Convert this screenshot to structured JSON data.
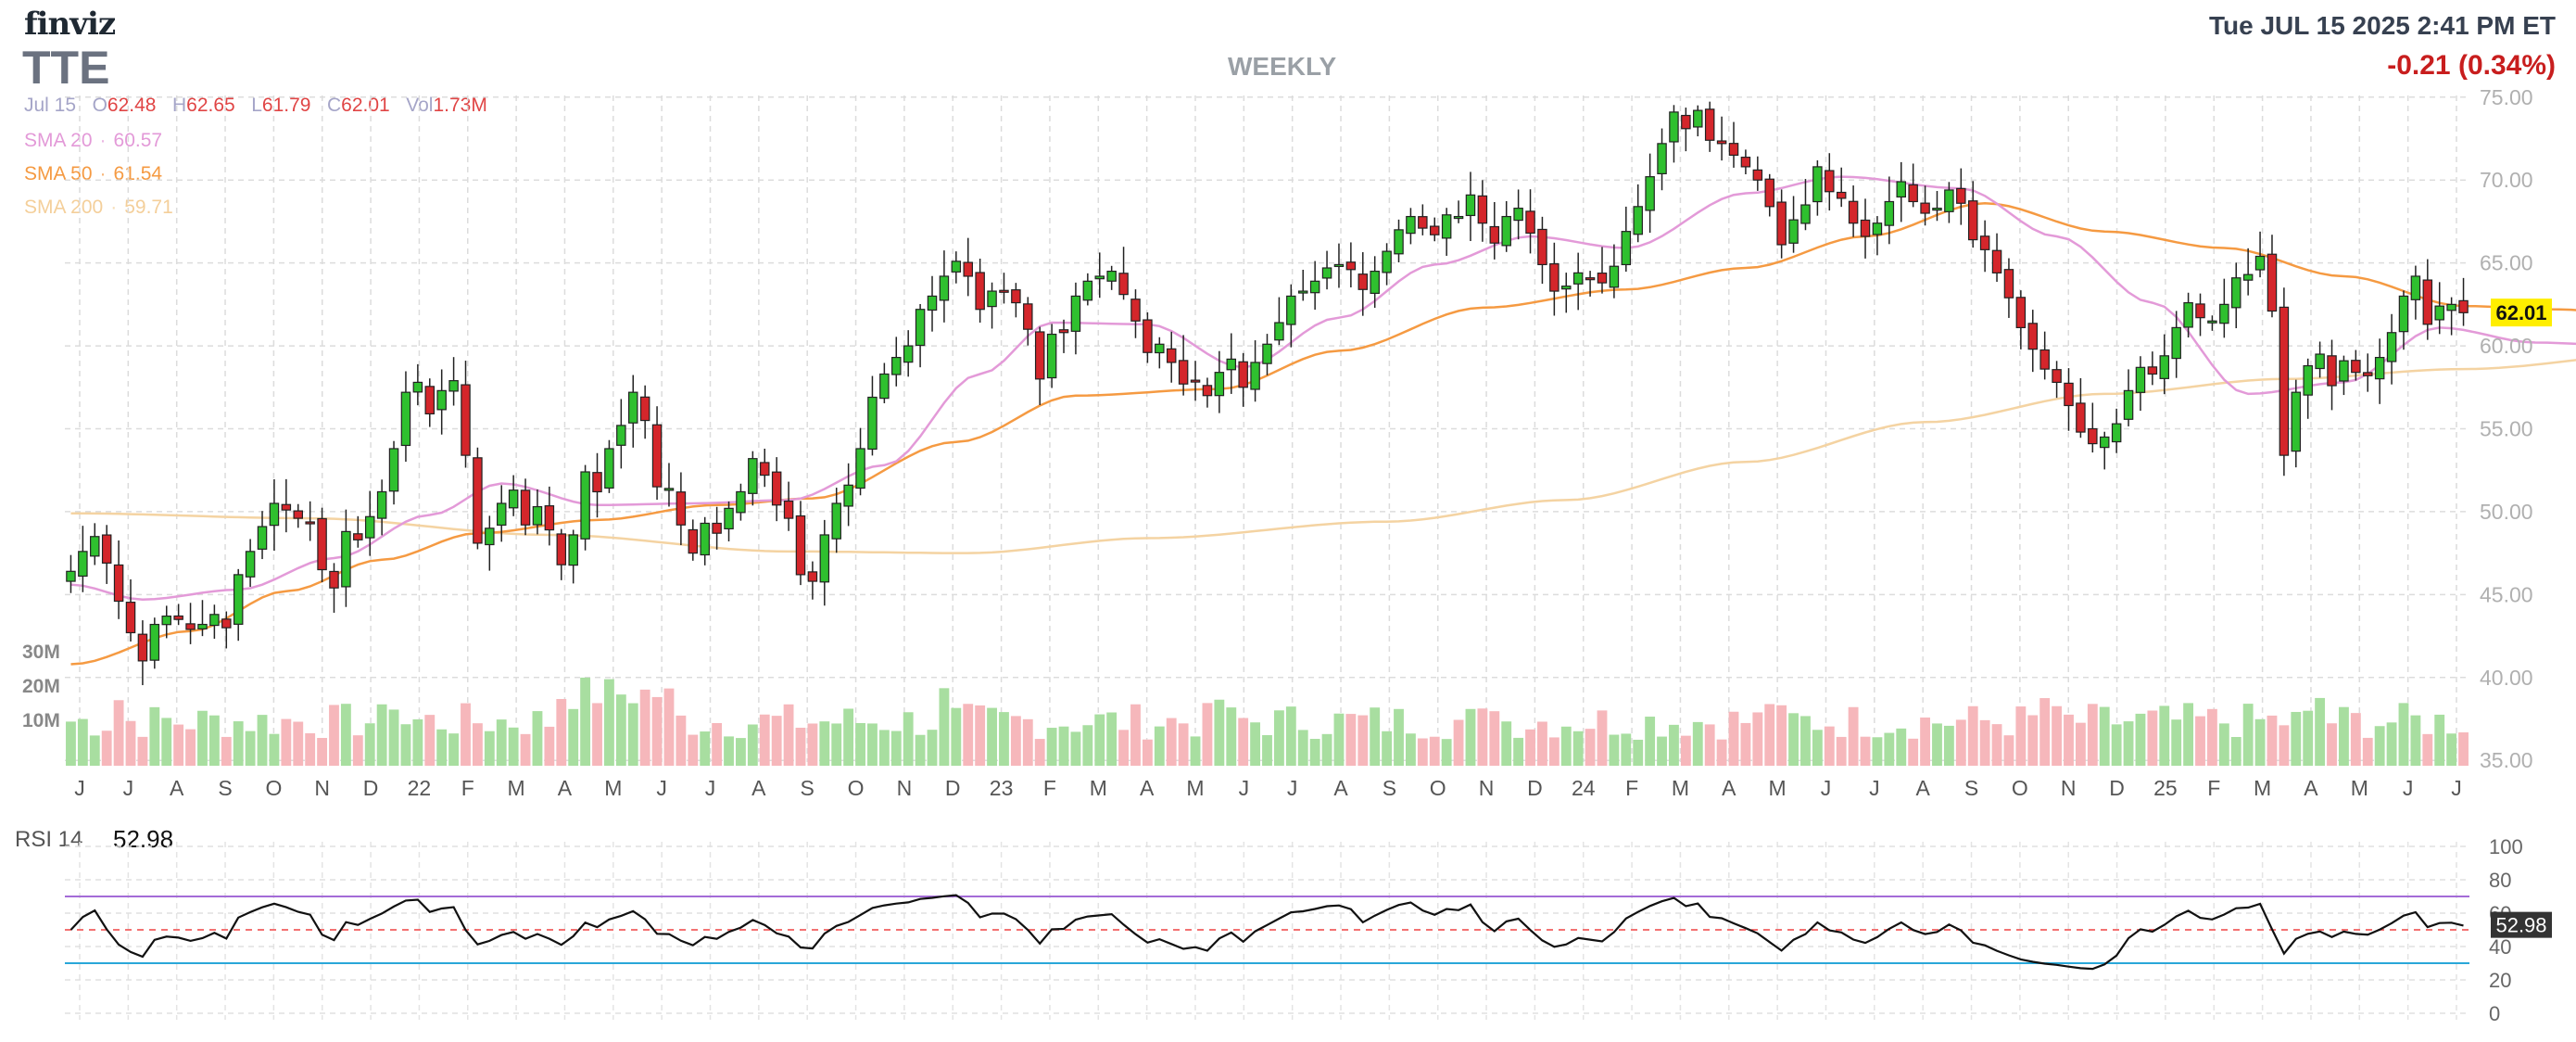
{
  "header": {
    "brand": "finviz",
    "ticker": "TTE",
    "timeframe": "WEEKLY",
    "datetime": "Tue JUL 15 2025 2:41 PM ET",
    "change": "-0.21 (0.34%)"
  },
  "ohlc": {
    "date": "Jul 15",
    "o_label": "O",
    "o": "62.48",
    "h_label": "H",
    "h": "62.65",
    "l_label": "L",
    "l": "61.79",
    "c_label": "C",
    "c": "62.01",
    "vol_label": "Vol",
    "vol": "1.73M"
  },
  "sma": [
    {
      "label": "SMA 20",
      "value": "60.57",
      "color": "#e39ad8"
    },
    {
      "label": "SMA 50",
      "value": "61.54",
      "color": "#f59a42"
    },
    {
      "label": "SMA 200",
      "value": "59.71",
      "color": "#f4d3a2"
    }
  ],
  "rsi": {
    "label": "RSI 14",
    "value": "52.98"
  },
  "colors": {
    "up": "#2fc02f",
    "down": "#d4262b",
    "vol_up": "#a8dea0",
    "vol_down": "#f6b7bb",
    "rsi_line": "#111111",
    "overbought": "#a46cd7",
    "oversold": "#29a7d9",
    "midline": "#ef4444",
    "last_price_bg": "#ffee00"
  },
  "chart_data": [
    {
      "type": "candlestick",
      "title": "TTE WEEKLY",
      "x_tick_labels": [
        "J",
        "J",
        "A",
        "S",
        "O",
        "N",
        "D",
        "22",
        "F",
        "M",
        "A",
        "M",
        "J",
        "J",
        "A",
        "S",
        "O",
        "N",
        "D",
        "23",
        "F",
        "M",
        "A",
        "M",
        "J",
        "J",
        "A",
        "S",
        "O",
        "N",
        "D",
        "24",
        "F",
        "M",
        "A",
        "M",
        "J",
        "J",
        "A",
        "S",
        "O",
        "N",
        "D",
        "25",
        "F",
        "M",
        "A",
        "M",
        "J",
        "J"
      ],
      "y_tick_labels": [
        "75.00",
        "70.00",
        "65.00",
        "60.00",
        "55.00",
        "50.00",
        "45.00",
        "40.00",
        "35.00"
      ],
      "ylim": [
        34.9,
        75.1
      ],
      "last_price": "62.01",
      "volume_tick_labels": [
        "30M",
        "20M",
        "10M"
      ],
      "close": [
        46.4,
        47.6,
        48.5,
        46.9,
        44.6,
        42.7,
        41.0,
        43.2,
        43.7,
        43.5,
        42.9,
        43.2,
        43.8,
        43.0,
        46.2,
        47.6,
        49.1,
        50.5,
        50.1,
        49.6,
        49.3,
        46.5,
        45.4,
        48.8,
        48.3,
        49.7,
        51.2,
        53.8,
        57.2,
        57.8,
        55.9,
        57.3,
        57.9,
        53.4,
        48.1,
        49.0,
        50.5,
        51.3,
        49.2,
        50.3,
        48.9,
        46.8,
        48.6,
        52.4,
        51.2,
        53.8,
        55.2,
        57.2,
        55.5,
        51.5,
        51.4,
        49.2,
        47.5,
        49.3,
        48.7,
        50.2,
        51.2,
        53.2,
        52.2,
        50.4,
        49.6,
        46.2,
        45.8,
        48.6,
        50.5,
        51.6,
        53.8,
        56.9,
        58.3,
        59.3,
        60.0,
        62.2,
        63.0,
        64.2,
        65.1,
        64.2,
        62.2,
        63.3,
        63.3,
        62.6,
        61.0,
        58.0,
        60.7,
        60.8,
        63.0,
        63.9,
        64.2,
        64.5,
        63.1,
        61.5,
        59.6,
        60.1,
        59.0,
        57.7,
        57.9,
        57.0,
        58.4,
        59.2,
        57.5,
        59.0,
        60.1,
        61.4,
        63.0,
        63.3,
        63.9,
        64.7,
        64.9,
        64.6,
        63.4,
        64.5,
        65.7,
        67.0,
        67.8,
        67.1,
        66.7,
        67.9,
        67.8,
        69.1,
        67.4,
        66.2,
        67.8,
        68.3,
        66.8,
        64.9,
        63.3,
        63.6,
        64.4,
        64.1,
        63.8,
        64.8,
        66.9,
        68.4,
        70.2,
        72.2,
        74.1,
        73.1,
        74.2,
        72.4,
        72.2,
        71.5,
        70.8,
        70.0,
        68.4,
        66.1,
        67.6,
        68.5,
        70.8,
        69.3,
        68.9,
        67.4,
        66.6,
        67.4,
        68.7,
        69.9,
        68.7,
        68.0,
        68.3,
        69.4,
        68.6,
        66.4,
        65.8,
        64.4,
        62.9,
        61.1,
        59.8,
        58.6,
        57.8,
        56.4,
        54.8,
        54.1,
        54.5,
        55.3,
        57.3,
        58.7,
        58.3,
        59.4,
        61.1,
        62.6,
        61.7,
        61.5,
        62.5,
        64.1,
        64.3,
        65.4,
        62.1,
        53.4,
        57.2,
        58.8,
        59.5,
        57.6,
        59.1,
        58.4,
        58.2,
        59.3,
        60.8,
        63.0,
        64.2,
        61.3,
        62.4,
        62.5,
        62.0
      ],
      "open_high_low": "derived per bar from close with small intrabar ranges",
      "sma20_knots": [
        [
          0,
          45.6
        ],
        [
          6,
          44.7
        ],
        [
          14,
          45.3
        ],
        [
          22,
          47.2
        ],
        [
          30,
          49.8
        ],
        [
          36,
          51.7
        ],
        [
          44,
          50.4
        ],
        [
          52,
          50.5
        ],
        [
          60,
          50.7
        ],
        [
          68,
          52.8
        ],
        [
          76,
          58.3
        ],
        [
          82,
          61.4
        ],
        [
          90,
          61.3
        ],
        [
          98,
          58.7
        ],
        [
          106,
          61.7
        ],
        [
          114,
          64.9
        ],
        [
          122,
          66.6
        ],
        [
          130,
          65.9
        ],
        [
          140,
          69.2
        ],
        [
          148,
          70.2
        ],
        [
          158,
          69.5
        ],
        [
          166,
          66.6
        ],
        [
          174,
          62.6
        ],
        [
          182,
          57.1
        ],
        [
          190,
          57.8
        ],
        [
          198,
          61.1
        ],
        [
          206,
          60.2
        ],
        [
          214,
          60.0
        ],
        [
          219,
          60.57
        ]
      ],
      "sma50_knots": [
        [
          0,
          40.8
        ],
        [
          10,
          42.8
        ],
        [
          18,
          45.2
        ],
        [
          26,
          47.1
        ],
        [
          34,
          48.7
        ],
        [
          44,
          49.5
        ],
        [
          54,
          50.4
        ],
        [
          62,
          50.8
        ],
        [
          74,
          54.2
        ],
        [
          84,
          57.0
        ],
        [
          96,
          57.4
        ],
        [
          106,
          59.7
        ],
        [
          118,
          62.3
        ],
        [
          130,
          63.4
        ],
        [
          140,
          64.7
        ],
        [
          150,
          66.6
        ],
        [
          160,
          68.6
        ],
        [
          170,
          66.9
        ],
        [
          180,
          65.9
        ],
        [
          190,
          64.2
        ],
        [
          200,
          62.4
        ],
        [
          208,
          62.2
        ],
        [
          214,
          61.9
        ],
        [
          219,
          61.54
        ]
      ],
      "sma200_knots": [
        [
          0,
          49.9
        ],
        [
          20,
          49.6
        ],
        [
          40,
          48.6
        ],
        [
          60,
          47.6
        ],
        [
          75,
          47.5
        ],
        [
          90,
          48.4
        ],
        [
          110,
          49.4
        ],
        [
          125,
          50.7
        ],
        [
          140,
          53.0
        ],
        [
          155,
          55.4
        ],
        [
          170,
          57.1
        ],
        [
          185,
          58.0
        ],
        [
          200,
          58.6
        ],
        [
          219,
          59.71
        ]
      ]
    },
    {
      "type": "line",
      "title": "RSI 14",
      "y_tick_labels": [
        "100",
        "80",
        "60",
        "40",
        "20",
        "0"
      ],
      "ylim": [
        0,
        100
      ],
      "overbought": 70,
      "oversold": 30,
      "midline": 50,
      "last_value": "52.98"
    }
  ]
}
